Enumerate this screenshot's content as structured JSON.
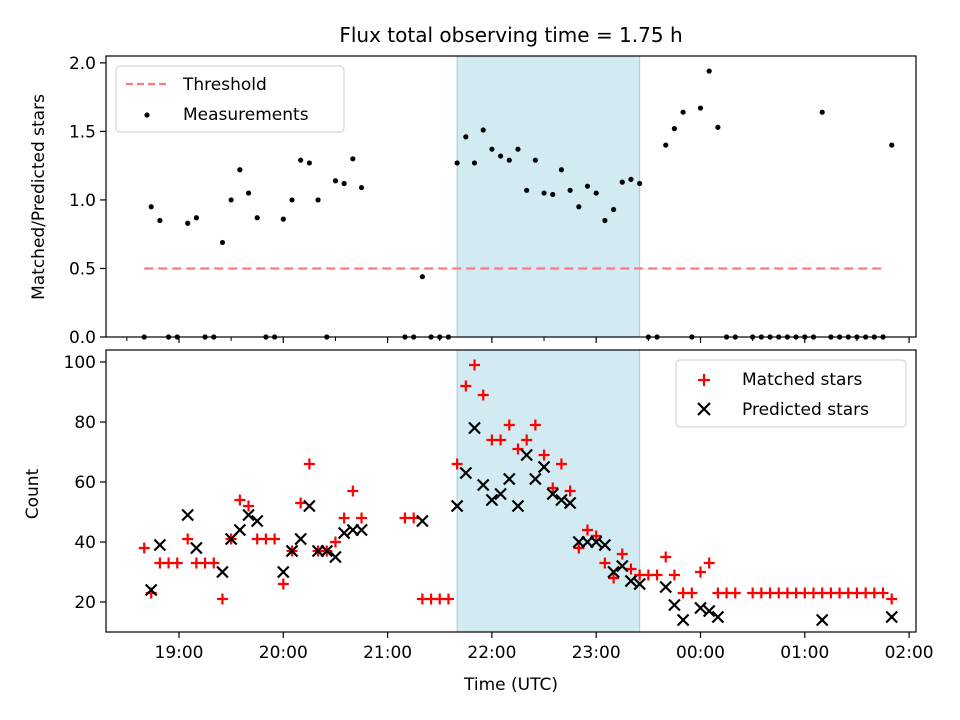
{
  "title": "Flux total observing time = 1.75 h",
  "chart_data": [
    {
      "type": "scatter",
      "panel": "top",
      "ylabel": "Matched/Predicted stars",
      "ylim": [
        0,
        2.05
      ],
      "yticks": [
        0.0,
        0.5,
        1.0,
        1.5,
        2.0
      ],
      "ytick_labels": [
        "0.0",
        "0.5",
        "1.0",
        "1.5",
        "2.0"
      ],
      "legend": {
        "placement": "top-left",
        "entries": [
          "Threshold",
          "Measurements"
        ]
      },
      "shaded_interval": [
        "21:40",
        "23:25"
      ],
      "series": [
        {
          "name": "Threshold",
          "style": "dashed-line",
          "color": "#ff7b7b",
          "y": 0.5,
          "x_range": [
            "18:40",
            "01:45"
          ]
        },
        {
          "name": "Measurements",
          "style": "dot",
          "color": "#000000",
          "points": [
            [
              "18:40",
              0
            ],
            [
              "18:44",
              0.95
            ],
            [
              "18:49",
              0.85
            ],
            [
              "18:54",
              0
            ],
            [
              "18:59",
              0
            ],
            [
              "19:05",
              0.83
            ],
            [
              "19:10",
              0.87
            ],
            [
              "19:15",
              0
            ],
            [
              "19:20",
              0
            ],
            [
              "19:25",
              0.69
            ],
            [
              "19:30",
              1.0
            ],
            [
              "19:35",
              1.22
            ],
            [
              "19:40",
              1.05
            ],
            [
              "19:45",
              0.87
            ],
            [
              "19:50",
              0
            ],
            [
              "19:55",
              0
            ],
            [
              "20:00",
              0.86
            ],
            [
              "20:05",
              1.0
            ],
            [
              "20:10",
              1.29
            ],
            [
              "20:15",
              1.27
            ],
            [
              "20:20",
              1.0
            ],
            [
              "20:25",
              0
            ],
            [
              "20:30",
              1.14
            ],
            [
              "20:35",
              1.12
            ],
            [
              "20:40",
              1.3
            ],
            [
              "20:45",
              1.09
            ],
            [
              "21:10",
              0
            ],
            [
              "21:15",
              0
            ],
            [
              "21:20",
              0.44
            ],
            [
              "21:25",
              0
            ],
            [
              "21:30",
              0
            ],
            [
              "21:35",
              0
            ],
            [
              "21:40",
              1.27
            ],
            [
              "21:45",
              1.46
            ],
            [
              "21:50",
              1.27
            ],
            [
              "21:55",
              1.51
            ],
            [
              "22:00",
              1.37
            ],
            [
              "22:05",
              1.32
            ],
            [
              "22:10",
              1.29
            ],
            [
              "22:15",
              1.37
            ],
            [
              "22:20",
              1.07
            ],
            [
              "22:25",
              1.29
            ],
            [
              "22:30",
              1.05
            ],
            [
              "22:35",
              1.04
            ],
            [
              "22:40",
              1.22
            ],
            [
              "22:45",
              1.07
            ],
            [
              "22:50",
              0.95
            ],
            [
              "22:55",
              1.1
            ],
            [
              "23:00",
              1.05
            ],
            [
              "23:05",
              0.85
            ],
            [
              "23:10",
              0.93
            ],
            [
              "23:15",
              1.13
            ],
            [
              "23:20",
              1.15
            ],
            [
              "23:25",
              1.12
            ],
            [
              "23:30",
              0
            ],
            [
              "23:35",
              0
            ],
            [
              "23:40",
              1.4
            ],
            [
              "23:45",
              1.52
            ],
            [
              "23:50",
              1.64
            ],
            [
              "23:55",
              0
            ],
            [
              "00:00",
              1.67
            ],
            [
              "00:05",
              1.94
            ],
            [
              "00:10",
              1.53
            ],
            [
              "00:15",
              0
            ],
            [
              "00:20",
              0
            ],
            [
              "00:30",
              0
            ],
            [
              "00:35",
              0
            ],
            [
              "00:40",
              0
            ],
            [
              "00:45",
              0
            ],
            [
              "00:50",
              0
            ],
            [
              "00:55",
              0
            ],
            [
              "01:00",
              0
            ],
            [
              "01:05",
              0
            ],
            [
              "01:10",
              1.64
            ],
            [
              "01:15",
              0
            ],
            [
              "01:20",
              0
            ],
            [
              "01:25",
              0
            ],
            [
              "01:30",
              0
            ],
            [
              "01:35",
              0
            ],
            [
              "01:40",
              0
            ],
            [
              "01:45",
              0
            ],
            [
              "01:50",
              1.4
            ]
          ]
        }
      ]
    },
    {
      "type": "scatter",
      "panel": "bottom",
      "xlabel": "Time (UTC)",
      "ylabel": "Count",
      "ylim": [
        10,
        104
      ],
      "yticks": [
        20,
        40,
        60,
        80,
        100
      ],
      "ytick_labels": [
        "20",
        "40",
        "60",
        "80",
        "100"
      ],
      "xticks": [
        "19:00",
        "20:00",
        "21:00",
        "22:00",
        "23:00",
        "00:00",
        "01:00",
        "02:00"
      ],
      "legend": {
        "placement": "top-right",
        "entries": [
          "Matched stars",
          "Predicted stars"
        ]
      },
      "shaded_interval": [
        "21:40",
        "23:25"
      ],
      "series": [
        {
          "name": "Matched stars",
          "marker": "plus",
          "color": "#ff0000",
          "points": [
            [
              "18:40",
              38
            ],
            [
              "18:44",
              23
            ],
            [
              "18:49",
              33
            ],
            [
              "18:54",
              33
            ],
            [
              "18:59",
              33
            ],
            [
              "19:05",
              41
            ],
            [
              "19:10",
              33
            ],
            [
              "19:15",
              33
            ],
            [
              "19:20",
              33
            ],
            [
              "19:25",
              21
            ],
            [
              "19:30",
              41
            ],
            [
              "19:35",
              54
            ],
            [
              "19:40",
              52
            ],
            [
              "19:45",
              41
            ],
            [
              "19:50",
              41
            ],
            [
              "19:55",
              41
            ],
            [
              "20:00",
              26
            ],
            [
              "20:05",
              37
            ],
            [
              "20:10",
              53
            ],
            [
              "20:15",
              66
            ],
            [
              "20:20",
              37
            ],
            [
              "20:25",
              37
            ],
            [
              "20:30",
              40
            ],
            [
              "20:35",
              48
            ],
            [
              "20:40",
              57
            ],
            [
              "20:45",
              48
            ],
            [
              "21:10",
              48
            ],
            [
              "21:15",
              48
            ],
            [
              "21:20",
              21
            ],
            [
              "21:25",
              21
            ],
            [
              "21:30",
              21
            ],
            [
              "21:35",
              21
            ],
            [
              "21:40",
              66
            ],
            [
              "21:45",
              92
            ],
            [
              "21:50",
              99
            ],
            [
              "21:55",
              89
            ],
            [
              "22:00",
              74
            ],
            [
              "22:05",
              74
            ],
            [
              "22:10",
              79
            ],
            [
              "22:15",
              71
            ],
            [
              "22:20",
              74
            ],
            [
              "22:25",
              79
            ],
            [
              "22:30",
              69
            ],
            [
              "22:35",
              58
            ],
            [
              "22:40",
              66
            ],
            [
              "22:45",
              57
            ],
            [
              "22:50",
              38
            ],
            [
              "22:55",
              44
            ],
            [
              "23:00",
              42
            ],
            [
              "23:05",
              33
            ],
            [
              "23:10",
              28
            ],
            [
              "23:15",
              36
            ],
            [
              "23:20",
              31
            ],
            [
              "23:25",
              29
            ],
            [
              "23:30",
              29
            ],
            [
              "23:35",
              29
            ],
            [
              "23:40",
              35
            ],
            [
              "23:45",
              29
            ],
            [
              "23:50",
              23
            ],
            [
              "23:55",
              23
            ],
            [
              "00:00",
              30
            ],
            [
              "00:05",
              33
            ],
            [
              "00:10",
              23
            ],
            [
              "00:15",
              23
            ],
            [
              "00:20",
              23
            ],
            [
              "00:30",
              23
            ],
            [
              "00:35",
              23
            ],
            [
              "00:40",
              23
            ],
            [
              "00:45",
              23
            ],
            [
              "00:50",
              23
            ],
            [
              "00:55",
              23
            ],
            [
              "01:00",
              23
            ],
            [
              "01:05",
              23
            ],
            [
              "01:10",
              23
            ],
            [
              "01:15",
              23
            ],
            [
              "01:20",
              23
            ],
            [
              "01:25",
              23
            ],
            [
              "01:30",
              23
            ],
            [
              "01:35",
              23
            ],
            [
              "01:40",
              23
            ],
            [
              "01:45",
              23
            ],
            [
              "01:50",
              21
            ]
          ]
        },
        {
          "name": "Predicted stars",
          "marker": "x",
          "color": "#000000",
          "points": [
            [
              "18:44",
              24
            ],
            [
              "18:49",
              39
            ],
            [
              "19:05",
              49
            ],
            [
              "19:10",
              38
            ],
            [
              "19:25",
              30
            ],
            [
              "19:30",
              41
            ],
            [
              "19:35",
              44
            ],
            [
              "19:40",
              49
            ],
            [
              "19:45",
              47
            ],
            [
              "20:00",
              30
            ],
            [
              "20:05",
              37
            ],
            [
              "20:10",
              41
            ],
            [
              "20:15",
              52
            ],
            [
              "20:20",
              37
            ],
            [
              "20:25",
              37
            ],
            [
              "20:30",
              35
            ],
            [
              "20:35",
              43
            ],
            [
              "20:40",
              44
            ],
            [
              "20:45",
              44
            ],
            [
              "21:20",
              47
            ],
            [
              "21:40",
              52
            ],
            [
              "21:45",
              63
            ],
            [
              "21:50",
              78
            ],
            [
              "21:55",
              59
            ],
            [
              "22:00",
              54
            ],
            [
              "22:05",
              56
            ],
            [
              "22:10",
              61
            ],
            [
              "22:15",
              52
            ],
            [
              "22:20",
              69
            ],
            [
              "22:25",
              61
            ],
            [
              "22:30",
              65
            ],
            [
              "22:35",
              56
            ],
            [
              "22:40",
              54
            ],
            [
              "22:45",
              53
            ],
            [
              "22:50",
              40
            ],
            [
              "22:55",
              40
            ],
            [
              "23:00",
              40
            ],
            [
              "23:05",
              39
            ],
            [
              "23:10",
              30
            ],
            [
              "23:15",
              32
            ],
            [
              "23:20",
              27
            ],
            [
              "23:25",
              26
            ],
            [
              "23:40",
              25
            ],
            [
              "23:45",
              19
            ],
            [
              "23:50",
              14
            ],
            [
              "00:00",
              18
            ],
            [
              "00:05",
              17
            ],
            [
              "00:10",
              15
            ],
            [
              "01:10",
              14
            ],
            [
              "01:50",
              15
            ]
          ]
        }
      ]
    }
  ]
}
